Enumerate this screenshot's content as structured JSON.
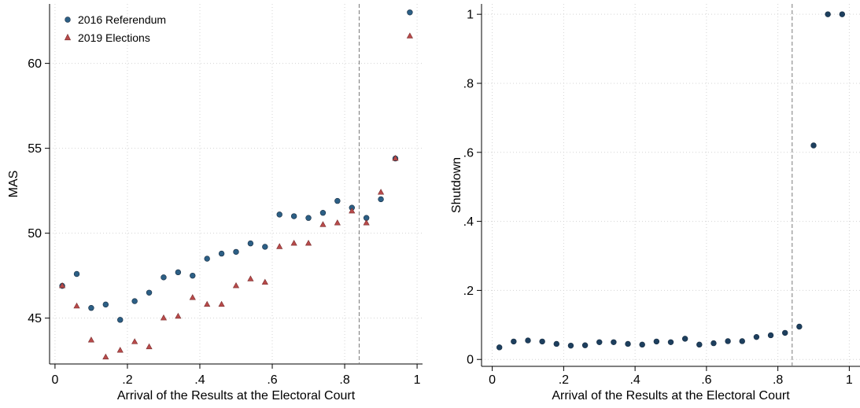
{
  "chart_data": [
    {
      "type": "scatter",
      "xlabel": "Arrival of the Results at the Electoral Court",
      "ylabel": "MAS",
      "xlim": [
        -0.015,
        1.015
      ],
      "ylim": [
        42.3,
        63.5
      ],
      "xticks": [
        0,
        0.2,
        0.4,
        0.6,
        0.8,
        1
      ],
      "xtick_labels": [
        "0",
        ".2",
        ".4",
        ".6",
        ".8",
        "1"
      ],
      "yticks": [
        45,
        50,
        55,
        60
      ],
      "ytick_labels": [
        "45",
        "50",
        "55",
        "60"
      ],
      "grid": true,
      "vline": 0.84,
      "legend_position": "top-left",
      "series": [
        {
          "name": "2016 Referendum",
          "marker": "circle",
          "color": "#2c5f85",
          "x": [
            0.02,
            0.06,
            0.1,
            0.14,
            0.18,
            0.22,
            0.26,
            0.3,
            0.34,
            0.38,
            0.42,
            0.46,
            0.5,
            0.54,
            0.58,
            0.62,
            0.66,
            0.7,
            0.74,
            0.78,
            0.82,
            0.86,
            0.9,
            0.94,
            0.98
          ],
          "y": [
            46.9,
            47.6,
            45.6,
            45.8,
            44.9,
            46.0,
            46.5,
            47.4,
            47.7,
            47.5,
            48.5,
            48.8,
            48.9,
            49.4,
            49.2,
            51.1,
            51.0,
            50.9,
            51.2,
            51.9,
            51.5,
            50.9,
            52.0,
            54.4,
            63.0
          ]
        },
        {
          "name": "2019 Elections",
          "marker": "triangle",
          "color": "#b84a4a",
          "x": [
            0.02,
            0.06,
            0.1,
            0.14,
            0.18,
            0.22,
            0.26,
            0.3,
            0.34,
            0.38,
            0.42,
            0.46,
            0.5,
            0.54,
            0.58,
            0.62,
            0.66,
            0.7,
            0.74,
            0.78,
            0.82,
            0.86,
            0.9,
            0.94,
            0.98
          ],
          "y": [
            46.9,
            45.7,
            43.7,
            42.7,
            43.1,
            43.6,
            43.3,
            45.0,
            45.1,
            46.2,
            45.8,
            45.8,
            46.9,
            47.3,
            47.1,
            49.2,
            49.4,
            49.4,
            50.5,
            50.6,
            51.3,
            50.6,
            52.4,
            54.4,
            61.6
          ]
        }
      ]
    },
    {
      "type": "scatter",
      "xlabel": "Arrival of the Results at the Electoral Court",
      "ylabel": "Shutdown",
      "xlim": [
        -0.03,
        1.03
      ],
      "ylim": [
        -0.02,
        1.03
      ],
      "xticks": [
        0,
        0.2,
        0.4,
        0.6,
        0.8,
        1
      ],
      "xtick_labels": [
        "0",
        ".2",
        ".4",
        ".6",
        ".8",
        "1"
      ],
      "yticks": [
        0,
        0.2,
        0.4,
        0.6,
        0.8,
        1
      ],
      "ytick_labels": [
        "0",
        ".2",
        ".4",
        ".6",
        ".8",
        "1"
      ],
      "grid": true,
      "vline": 0.84,
      "series": [
        {
          "marker": "circle",
          "color": "#1d3f5e",
          "x": [
            0.02,
            0.06,
            0.1,
            0.14,
            0.18,
            0.22,
            0.26,
            0.3,
            0.34,
            0.38,
            0.42,
            0.46,
            0.5,
            0.54,
            0.58,
            0.62,
            0.66,
            0.7,
            0.74,
            0.78,
            0.82,
            0.86,
            0.9,
            0.94,
            0.98
          ],
          "y": [
            0.035,
            0.052,
            0.055,
            0.052,
            0.045,
            0.04,
            0.041,
            0.05,
            0.05,
            0.045,
            0.043,
            0.052,
            0.05,
            0.06,
            0.043,
            0.047,
            0.053,
            0.053,
            0.065,
            0.07,
            0.077,
            0.095,
            0.62,
            1.0,
            1.0
          ]
        }
      ]
    }
  ]
}
